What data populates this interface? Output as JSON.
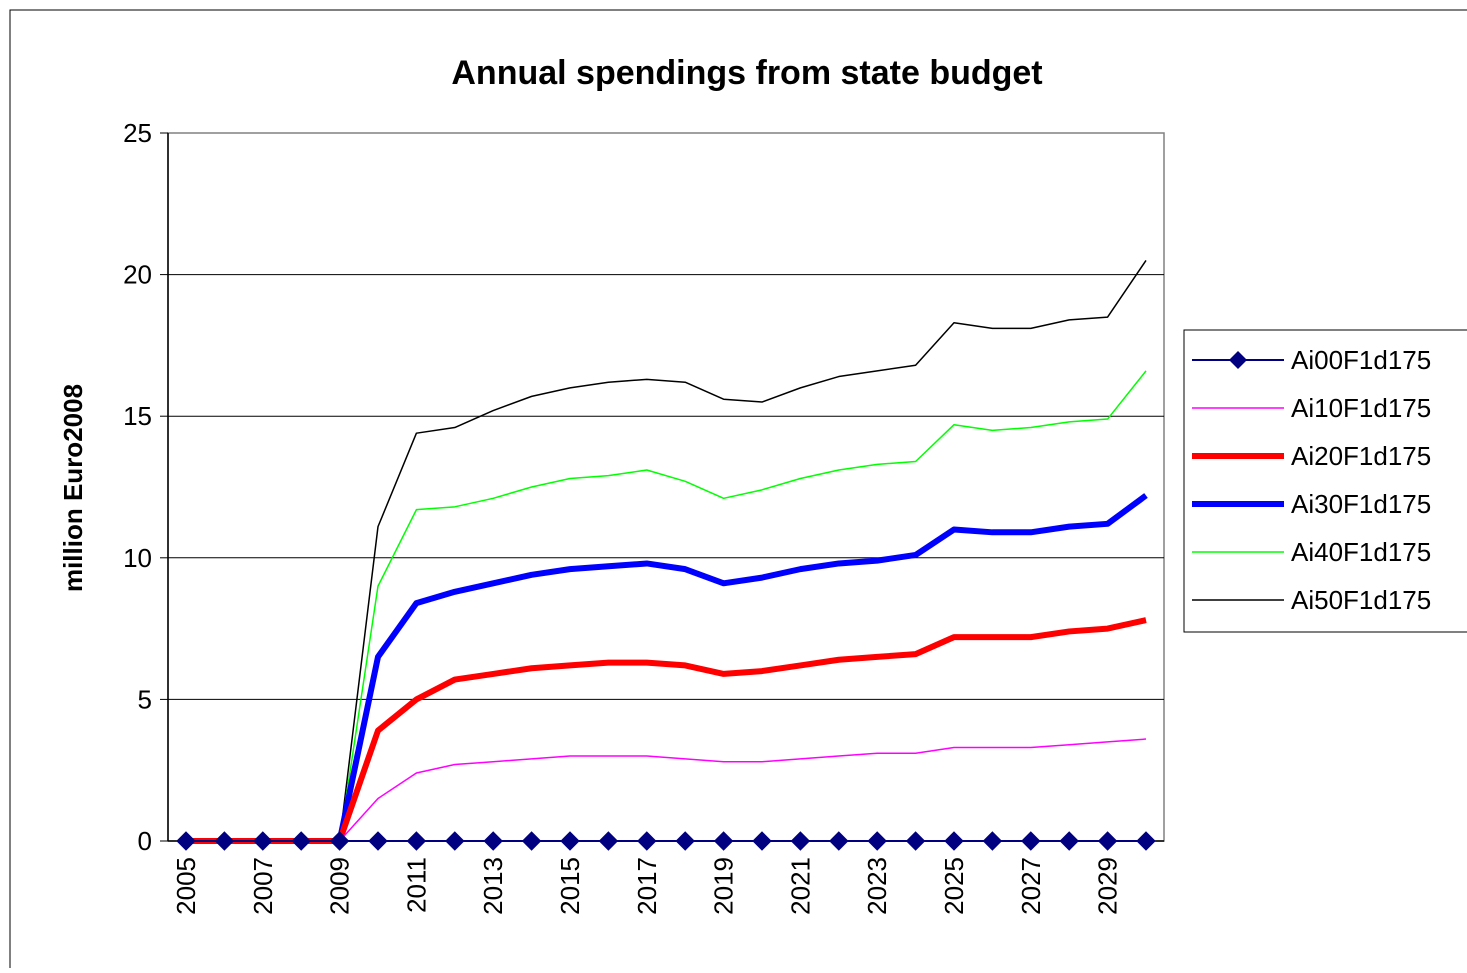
{
  "chart_data": {
    "type": "line",
    "title": "Annual spendings from state budget",
    "xlabel": "",
    "ylabel": "million Euro2008",
    "ylim": [
      0,
      25
    ],
    "yticks": [
      0,
      5,
      10,
      15,
      20,
      25
    ],
    "x": [
      2005,
      2006,
      2007,
      2008,
      2009,
      2010,
      2011,
      2012,
      2013,
      2014,
      2015,
      2016,
      2017,
      2018,
      2019,
      2020,
      2021,
      2022,
      2023,
      2024,
      2025,
      2026,
      2027,
      2028,
      2029,
      2030
    ],
    "xtick_labels": [
      "2005",
      "2007",
      "2009",
      "2011",
      "2013",
      "2015",
      "2017",
      "2019",
      "2021",
      "2023",
      "2025",
      "2027",
      "2029"
    ],
    "grid": "horizontal",
    "legend_position": "right",
    "series": [
      {
        "name": "Ai00F1d175",
        "color": "#000080",
        "width": 2,
        "marker": "diamond",
        "values": [
          0,
          0,
          0,
          0,
          0,
          0,
          0,
          0,
          0,
          0,
          0,
          0,
          0,
          0,
          0,
          0,
          0,
          0,
          0,
          0,
          0,
          0,
          0,
          0,
          0,
          0
        ]
      },
      {
        "name": "Ai10F1d175",
        "color": "#ff00ff",
        "width": 1.5,
        "marker": "none",
        "values": [
          0,
          0,
          0,
          0,
          0,
          1.5,
          2.4,
          2.7,
          2.8,
          2.9,
          3.0,
          3.0,
          3.0,
          2.9,
          2.8,
          2.8,
          2.9,
          3.0,
          3.1,
          3.1,
          3.3,
          3.3,
          3.3,
          3.4,
          3.5,
          3.6
        ]
      },
      {
        "name": "Ai20F1d175",
        "color": "#ff0000",
        "width": 6,
        "marker": "none",
        "values": [
          0,
          0,
          0,
          0,
          0,
          3.9,
          5.0,
          5.7,
          5.9,
          6.1,
          6.2,
          6.3,
          6.3,
          6.2,
          5.9,
          6.0,
          6.2,
          6.4,
          6.5,
          6.6,
          7.2,
          7.2,
          7.2,
          7.4,
          7.5,
          7.8
        ]
      },
      {
        "name": "Ai30F1d175",
        "color": "#0000ff",
        "width": 6,
        "marker": "none",
        "values": [
          0,
          0,
          0,
          0,
          0,
          6.5,
          8.4,
          8.8,
          9.1,
          9.4,
          9.6,
          9.7,
          9.8,
          9.6,
          9.1,
          9.3,
          9.6,
          9.8,
          9.9,
          10.1,
          11.0,
          10.9,
          10.9,
          11.1,
          11.2,
          12.2
        ]
      },
      {
        "name": "Ai40F1d175",
        "color": "#00ff00",
        "width": 1.5,
        "marker": "none",
        "values": [
          0,
          0,
          0,
          0,
          0,
          9.0,
          11.7,
          11.8,
          12.1,
          12.5,
          12.8,
          12.9,
          13.1,
          12.7,
          12.1,
          12.4,
          12.8,
          13.1,
          13.3,
          13.4,
          14.7,
          14.5,
          14.6,
          14.8,
          14.9,
          16.6
        ]
      },
      {
        "name": "Ai50F1d175",
        "color": "#000000",
        "width": 1.5,
        "marker": "none",
        "values": [
          0,
          0,
          0,
          0,
          0,
          11.1,
          14.4,
          14.6,
          15.2,
          15.7,
          16.0,
          16.2,
          16.3,
          16.2,
          15.6,
          15.5,
          16.0,
          16.4,
          16.6,
          16.8,
          18.3,
          18.1,
          18.1,
          18.4,
          18.5,
          20.5
        ]
      }
    ]
  }
}
